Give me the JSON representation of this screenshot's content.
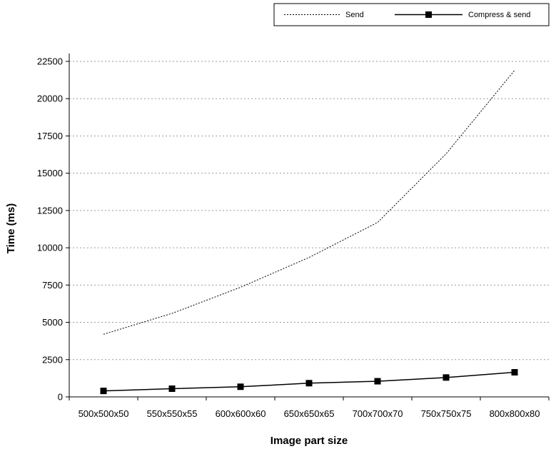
{
  "chart_data": {
    "type": "line",
    "xlabel": "Image part size",
    "ylabel": "Time (ms)",
    "categories": [
      "500x500x50",
      "550x550x55",
      "600x600x60",
      "650x650x65",
      "700x700x70",
      "750x750x75",
      "800x800x80"
    ],
    "ylim": [
      0,
      22500
    ],
    "yticks": [
      0,
      2500,
      5000,
      7500,
      10000,
      12500,
      15000,
      17500,
      20000,
      22500
    ],
    "grid": "horizontal dotted",
    "legend_position": "top-right",
    "series": [
      {
        "name": "Send",
        "style": "dotted",
        "marker": "none",
        "values": [
          4200,
          5600,
          7350,
          9350,
          11700,
          16300,
          21900
        ]
      },
      {
        "name": "Compress & send",
        "style": "solid",
        "marker": "square",
        "values": [
          400,
          550,
          680,
          920,
          1050,
          1300,
          1650
        ]
      }
    ]
  }
}
